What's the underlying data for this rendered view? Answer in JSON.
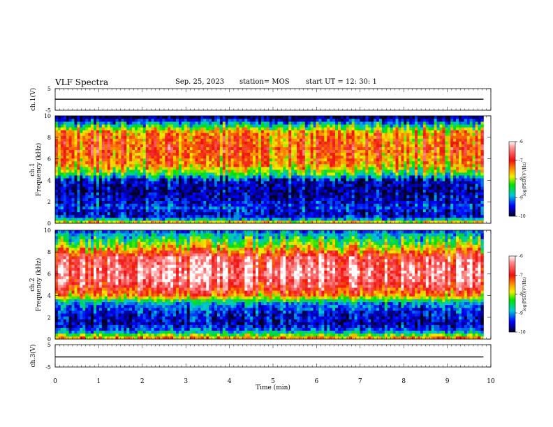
{
  "header": {
    "title": "VLF Spectra",
    "date": "Sep. 25, 2023",
    "station": "station= MOS",
    "start": "start  UT =   12: 30: 1"
  },
  "chart_data": [
    {
      "type": "line",
      "panel": "ch1-waveform",
      "ylabel": "ch.1(V)",
      "ylim": [
        -5,
        5
      ],
      "yticks": [
        "5",
        "-5"
      ],
      "xlim": [
        0,
        10
      ],
      "series": [
        {
          "x": [
            0,
            9.83
          ],
          "values": [
            0.1,
            0.1
          ]
        }
      ]
    },
    {
      "type": "heatmap",
      "panel": "ch1-spectrogram",
      "ylabel": "ch.1 Frequency (kHz)",
      "ylim": [
        0,
        10
      ],
      "yticks": [
        "0",
        "2",
        "4",
        "6",
        "8",
        "10"
      ],
      "xlim": [
        0,
        10
      ],
      "data_end_min": 9.83,
      "colorbar": {
        "label": "log(PSD)(V²/Hz)",
        "range": [
          -10,
          -6
        ],
        "ticks": [
          "-6",
          "-7",
          "-8",
          "-9",
          "-10"
        ]
      },
      "profile_khz": [
        0,
        0.5,
        1.0,
        1.5,
        2.0,
        3.0,
        4.0,
        4.6,
        5.5,
        7.0,
        8.5,
        9.2,
        9.7,
        10.0
      ],
      "profile_log_psd": [
        -7.2,
        -9.3,
        -9.6,
        -9.2,
        -9.5,
        -9.7,
        -9.5,
        -8.3,
        -7.4,
        -7.1,
        -7.4,
        -8.6,
        -9.6,
        -10.0
      ]
    },
    {
      "type": "heatmap",
      "panel": "ch2-spectrogram",
      "ylabel": "ch.2 Frequency (kHz)",
      "ylim": [
        0,
        10
      ],
      "yticks": [
        "0",
        "2",
        "4",
        "6",
        "8",
        "10"
      ],
      "xlim": [
        0,
        10
      ],
      "data_end_min": 9.83,
      "colorbar": {
        "label": "log(PSD)(V²/Hz)",
        "range": [
          -10,
          -6
        ],
        "ticks": [
          "-6",
          "-7",
          "-8",
          "-9",
          "-10"
        ]
      },
      "profile_khz": [
        0,
        0.6,
        1.0,
        1.5,
        2.5,
        3.4,
        4.0,
        5.0,
        6.0,
        7.5,
        8.3,
        9.0,
        9.6,
        10.0
      ],
      "profile_log_psd": [
        -7.2,
        -8.7,
        -9.3,
        -9.6,
        -9.4,
        -8.9,
        -7.4,
        -6.6,
        -6.3,
        -6.6,
        -7.6,
        -8.3,
        -8.8,
        -9.2
      ]
    },
    {
      "type": "line",
      "panel": "ch3-waveform",
      "ylabel": "ch.3(V)",
      "ylim": [
        -5,
        5
      ],
      "yticks": [
        "5",
        "-5"
      ],
      "xlim": [
        0,
        10
      ],
      "xlabel": "Time  (min)",
      "xticks": [
        "0",
        "1",
        "2",
        "3",
        "4",
        "5",
        "6",
        "7",
        "8",
        "9",
        "10"
      ],
      "series": [
        {
          "x": [
            0,
            9.83
          ],
          "values": [
            -0.5,
            -0.5
          ]
        }
      ]
    }
  ]
}
